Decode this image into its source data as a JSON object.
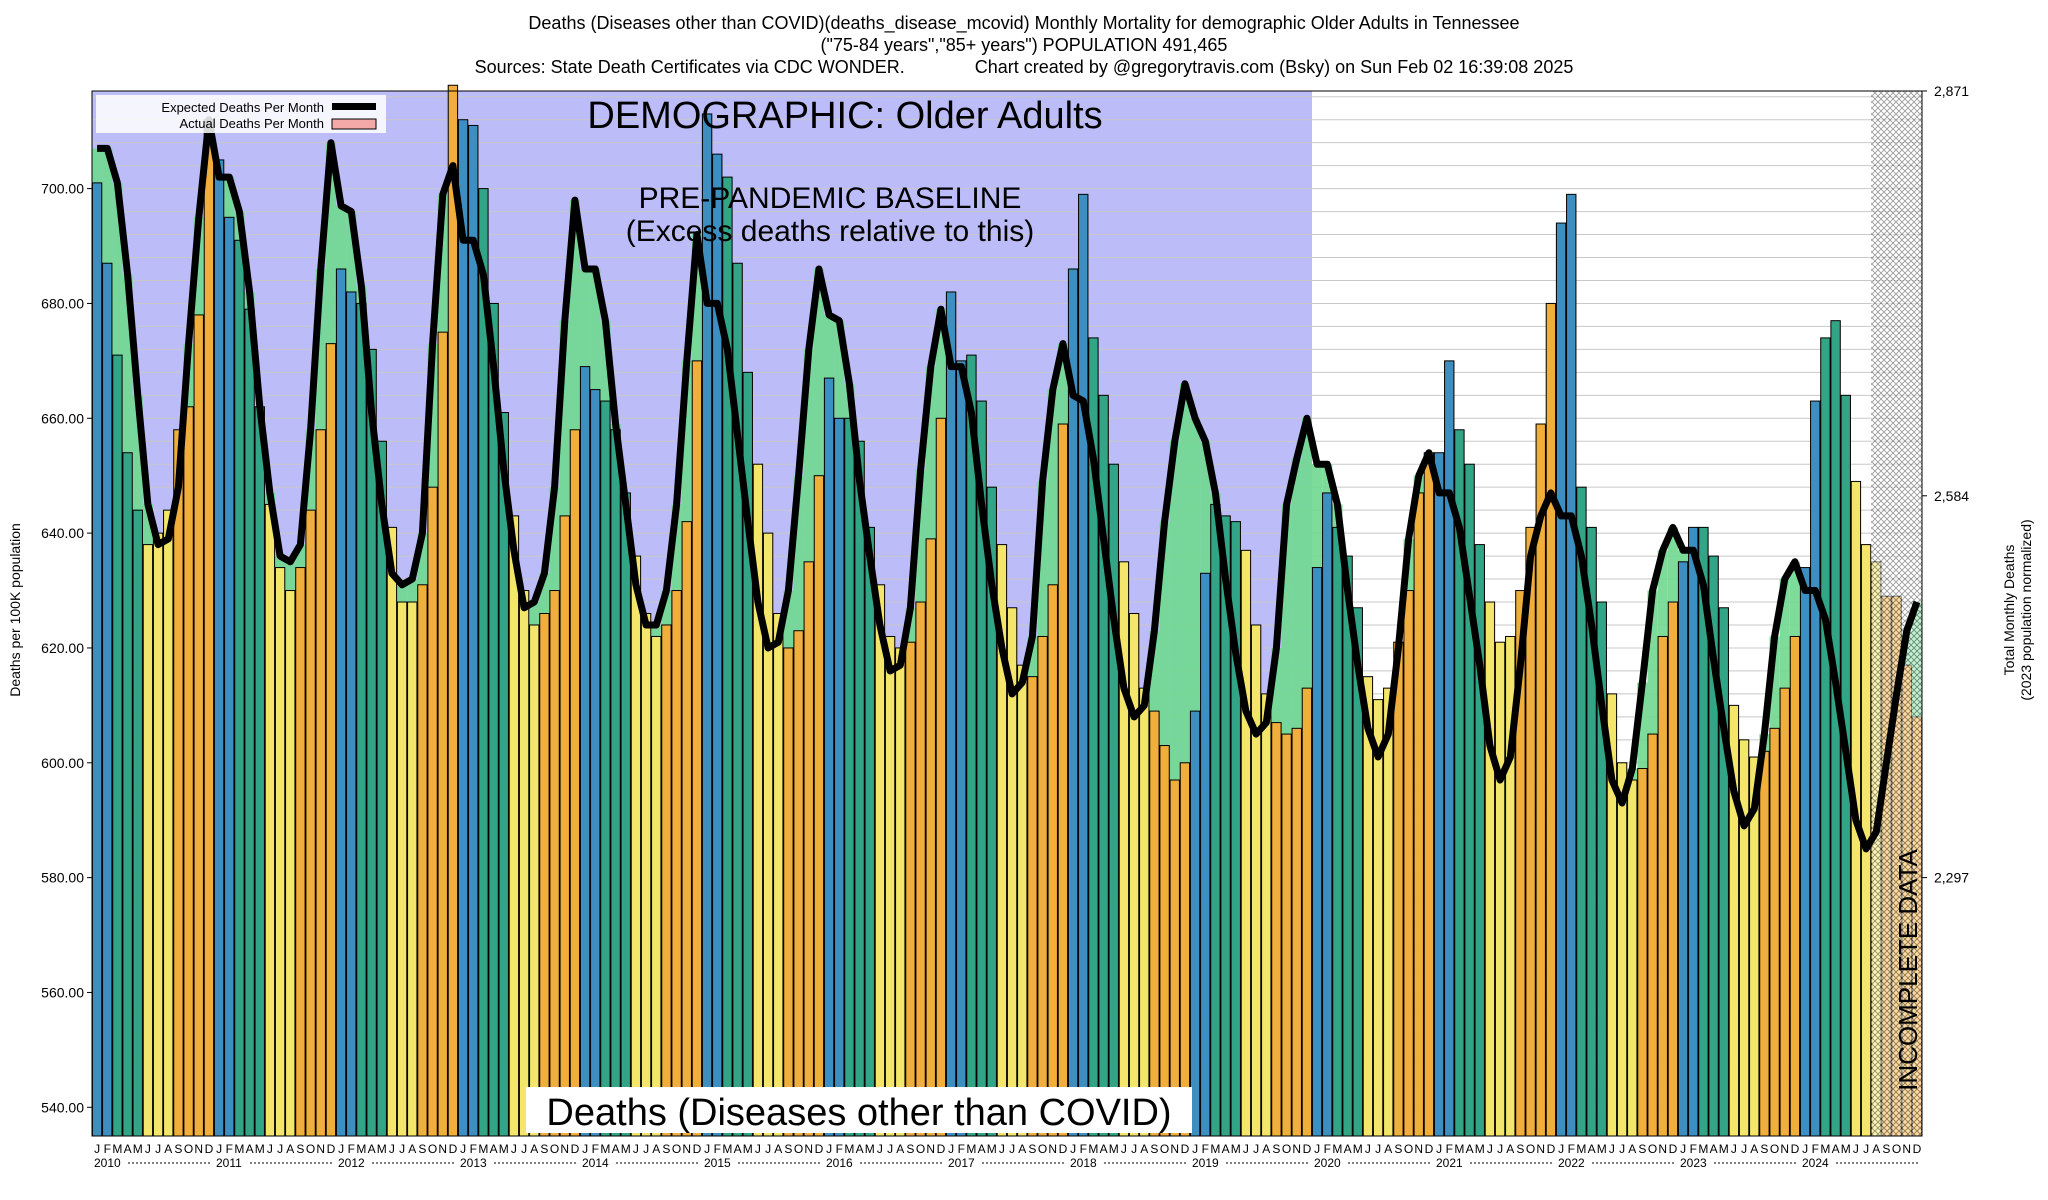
{
  "header": {
    "line1": "Deaths (Diseases other than COVID)(deaths_disease_mcovid) Monthly Mortality for demographic Older Adults in Tennessee",
    "line2": "(\"75-84 years\",\"85+ years\") POPULATION 491,465",
    "line3": "Sources: State Death Certificates via CDC WONDER.              Chart created by @gregorytravis.com (Bsky) on Sun Feb 02 16:39:08 2025"
  },
  "legend": {
    "expected": "Expected Deaths Per Month",
    "actual": "Actual Deaths Per Month"
  },
  "annotations": {
    "demographic": "DEMOGRAPHIC: Older Adults",
    "baseline_1": "PRE-PANDEMIC BASELINE",
    "baseline_2": "(Excess deaths relative to this)",
    "bottom_label": "Deaths (Diseases other than COVID)",
    "incomplete": "INCOMPLETE DATA"
  },
  "colors": {
    "winter": "#3d8fc2",
    "spring": "#31a586",
    "summer": "#f3e66a",
    "fall": "#f0ae3d",
    "excess": "#f07b25",
    "deficit": "#6fd88f",
    "expected_line": "#000000",
    "baseline_shade": "#bcbcf8"
  },
  "chart_data": {
    "type": "bar",
    "title": "Deaths (Diseases other than COVID)(deaths_disease_mcovid) Monthly Mortality for demographic Older Adults in Tennessee",
    "ylabel": "Deaths per 100K population",
    "ylabel_right_1": "Total Monthly Deaths",
    "ylabel_right_2": "(2023 population normalized)",
    "ylim": [
      535,
      717
    ],
    "yticks": [
      "540.00",
      "560.00",
      "580.00",
      "600.00",
      "620.00",
      "640.00",
      "660.00",
      "680.00",
      "700.00"
    ],
    "yticks_values": [
      540,
      560,
      580,
      600,
      620,
      640,
      660,
      680,
      700
    ],
    "yticks_right": [
      "2,297",
      "2,584",
      "2,871"
    ],
    "yticks_right_values": [
      580,
      646.5,
      717
    ],
    "month_letters": [
      "J",
      "F",
      "M",
      "A",
      "M",
      "J",
      "J",
      "A",
      "S",
      "O",
      "N",
      "D"
    ],
    "years": [
      "2010",
      "2011",
      "2012",
      "2013",
      "2014",
      "2015",
      "2016",
      "2017",
      "2018",
      "2019",
      "2020",
      "2021",
      "2022",
      "2023",
      "2024"
    ],
    "baseline_period": [
      "2010-01",
      "2019-12"
    ],
    "incomplete_from": "2024-08",
    "grid": true,
    "legend_position": "top-left",
    "series": [
      {
        "name": "Actual Deaths Per Month",
        "values": [
          701,
          687,
          671,
          654,
          644,
          638,
          640,
          644,
          658,
          662,
          678,
          712,
          705,
          695,
          691,
          679,
          662,
          645,
          634,
          630,
          634,
          644,
          658,
          673,
          686,
          682,
          680,
          672,
          656,
          641,
          628,
          628,
          631,
          648,
          675,
          718,
          712,
          711,
          700,
          680,
          661,
          643,
          630,
          624,
          626,
          630,
          643,
          658,
          669,
          665,
          663,
          658,
          647,
          636,
          626,
          622,
          624,
          630,
          642,
          670,
          713,
          706,
          702,
          687,
          668,
          652,
          640,
          626,
          620,
          623,
          635,
          650,
          667,
          660,
          660,
          656,
          641,
          631,
          622,
          620,
          621,
          628,
          639,
          660,
          682,
          670,
          671,
          663,
          648,
          638,
          627,
          617,
          615,
          622,
          631,
          659,
          686,
          699,
          674,
          664,
          652,
          635,
          626,
          613,
          609,
          603,
          597,
          600,
          609,
          633,
          645,
          643,
          642,
          637,
          624,
          612,
          607,
          605,
          606,
          613,
          634,
          647,
          641,
          636,
          627,
          615,
          611,
          613,
          621,
          630,
          647,
          654,
          654,
          670,
          658,
          652,
          638,
          628,
          621,
          622,
          630,
          641,
          659,
          680,
          694,
          699,
          648,
          641,
          628,
          612,
          600,
          597,
          599,
          605,
          622,
          628,
          635,
          641,
          641,
          636,
          627,
          610,
          604,
          601,
          602,
          606,
          613,
          622,
          634,
          663,
          674,
          677,
          664,
          649,
          638,
          635,
          629,
          629,
          617,
          608
        ]
      },
      {
        "name": "Expected Deaths Per Month",
        "values": [
          707,
          707,
          701,
          685,
          664,
          645,
          638,
          639,
          648,
          673,
          695,
          712,
          702,
          702,
          696,
          682,
          662,
          647,
          636,
          635,
          638,
          658,
          686,
          708,
          697,
          696,
          683,
          661,
          645,
          633,
          631,
          632,
          640,
          673,
          699,
          704,
          691,
          691,
          685,
          669,
          651,
          637,
          627,
          628,
          633,
          648,
          677,
          698,
          686,
          686,
          677,
          659,
          645,
          631,
          624,
          624,
          630,
          645,
          670,
          692,
          680,
          680,
          672,
          657,
          642,
          628,
          620,
          621,
          630,
          650,
          672,
          686,
          678,
          677,
          666,
          649,
          636,
          624,
          616,
          617,
          627,
          651,
          669,
          679,
          669,
          669,
          661,
          645,
          631,
          620,
          612,
          614,
          622,
          649,
          665,
          673,
          664,
          663,
          653,
          639,
          625,
          613,
          608,
          610,
          623,
          642,
          656,
          666,
          660,
          656,
          647,
          632,
          619,
          609,
          605,
          607,
          620,
          645,
          653,
          660,
          652,
          652,
          645,
          630,
          617,
          606,
          601,
          605,
          620,
          639,
          650,
          654,
          647,
          647,
          641,
          629,
          617,
          603,
          597,
          601,
          617,
          636,
          643,
          647,
          643,
          643,
          636,
          624,
          610,
          597,
          593,
          599,
          614,
          630,
          637,
          641,
          637,
          637,
          631,
          618,
          606,
          595,
          589,
          592,
          605,
          622,
          632,
          635,
          630,
          630,
          625,
          614,
          602,
          590,
          585,
          588,
          600,
          612,
          623,
          628
        ]
      }
    ]
  }
}
